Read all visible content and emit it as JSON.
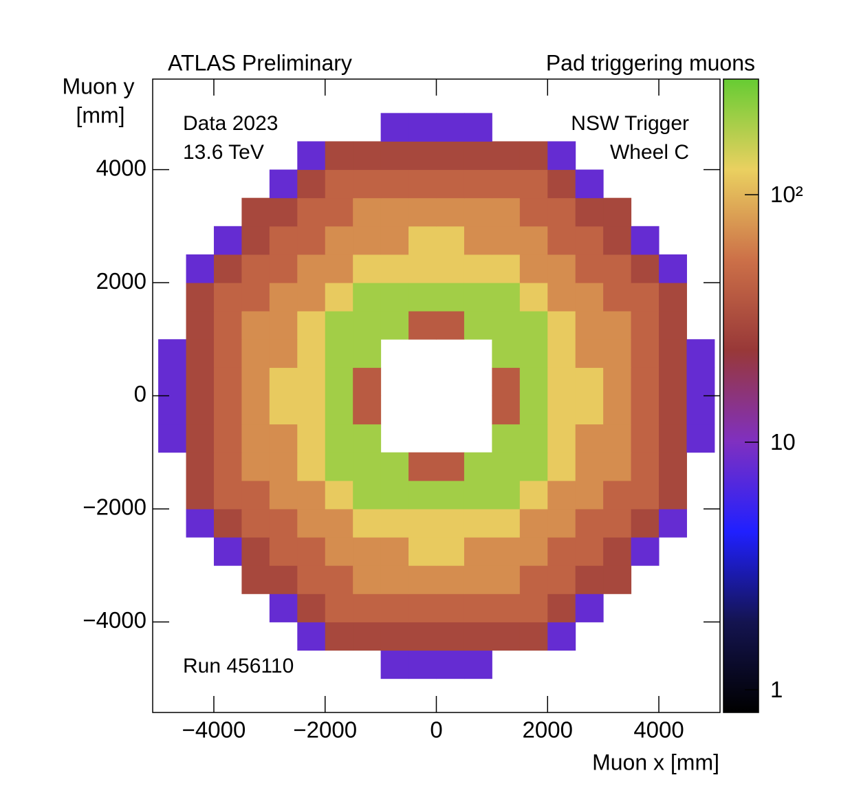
{
  "chart_data": {
    "type": "heatmap",
    "title": "Pad triggering muons",
    "experiment": "ATLAS Preliminary",
    "annotations_left": [
      "Data 2023",
      "13.6 TeV"
    ],
    "annotations_right": [
      "NSW Trigger",
      "Wheel C"
    ],
    "run_label": "Run 456110",
    "xlabel": "Muon x [mm]",
    "ylabel_lines": [
      "Muon y",
      "[mm]"
    ],
    "xlim": [
      -5100,
      5100
    ],
    "ylim": [
      -5600,
      5600
    ],
    "xticks": [
      {
        "value": -4000,
        "label": "−4000"
      },
      {
        "value": -2000,
        "label": "−2000"
      },
      0,
      2000,
      4000
    ],
    "yticks": [
      {
        "value": -4000,
        "label": "−4000"
      },
      {
        "value": -2000,
        "label": "−2000"
      },
      0,
      2000,
      4000
    ],
    "xbins": [
      -5000,
      -4500,
      -4000,
      -3500,
      -3000,
      -2500,
      -2000,
      -1500,
      -1000,
      -500,
      0,
      500,
      1000,
      1500,
      2000,
      2500,
      3000,
      3500,
      4000,
      4500,
      5000
    ],
    "ybins": [
      -5000,
      -4500,
      -4000,
      -3500,
      -3000,
      -2500,
      -2000,
      -1500,
      -1000,
      -500,
      0,
      500,
      1000,
      1500,
      2000,
      2500,
      3000,
      3500,
      4000,
      4500,
      5000
    ],
    "z": [
      [
        null,
        null,
        null,
        null,
        null,
        null,
        null,
        null,
        8,
        8,
        8,
        8,
        null,
        null,
        null,
        null,
        null,
        null,
        null,
        null
      ],
      [
        null,
        null,
        null,
        null,
        null,
        8,
        30,
        30,
        30,
        30,
        30,
        30,
        30,
        30,
        8,
        null,
        null,
        null,
        null,
        null
      ],
      [
        null,
        null,
        null,
        null,
        8,
        30,
        45,
        45,
        45,
        45,
        45,
        45,
        45,
        45,
        30,
        8,
        null,
        null,
        null,
        null
      ],
      [
        null,
        null,
        null,
        30,
        30,
        45,
        45,
        70,
        70,
        70,
        70,
        70,
        70,
        45,
        45,
        30,
        30,
        null,
        null,
        null
      ],
      [
        null,
        null,
        8,
        30,
        45,
        45,
        70,
        70,
        70,
        120,
        120,
        70,
        70,
        70,
        45,
        45,
        30,
        8,
        null,
        null
      ],
      [
        null,
        8,
        30,
        45,
        45,
        70,
        70,
        120,
        120,
        120,
        120,
        120,
        120,
        70,
        70,
        45,
        45,
        30,
        8,
        null
      ],
      [
        null,
        30,
        45,
        45,
        70,
        70,
        120,
        200,
        200,
        200,
        200,
        200,
        200,
        120,
        70,
        70,
        45,
        45,
        30,
        null
      ],
      [
        null,
        30,
        45,
        70,
        70,
        120,
        200,
        200,
        200,
        40,
        40,
        200,
        200,
        200,
        120,
        70,
        70,
        45,
        30,
        null
      ],
      [
        8,
        30,
        45,
        70,
        70,
        120,
        200,
        200,
        null,
        null,
        null,
        null,
        200,
        200,
        120,
        70,
        70,
        45,
        30,
        8
      ],
      [
        8,
        30,
        45,
        70,
        120,
        120,
        200,
        40,
        null,
        null,
        null,
        null,
        40,
        200,
        120,
        120,
        70,
        45,
        30,
        8
      ],
      [
        8,
        30,
        45,
        70,
        120,
        120,
        200,
        40,
        null,
        null,
        null,
        null,
        40,
        200,
        120,
        120,
        70,
        45,
        30,
        8
      ],
      [
        8,
        30,
        45,
        70,
        70,
        120,
        200,
        200,
        null,
        null,
        null,
        null,
        200,
        200,
        120,
        70,
        70,
        45,
        30,
        8
      ],
      [
        null,
        30,
        45,
        70,
        70,
        120,
        200,
        200,
        200,
        40,
        40,
        200,
        200,
        200,
        120,
        70,
        70,
        45,
        30,
        null
      ],
      [
        null,
        30,
        45,
        45,
        70,
        70,
        120,
        200,
        200,
        200,
        200,
        200,
        200,
        120,
        70,
        70,
        45,
        45,
        30,
        null
      ],
      [
        null,
        8,
        30,
        45,
        45,
        70,
        70,
        120,
        120,
        120,
        120,
        120,
        120,
        70,
        70,
        45,
        45,
        30,
        8,
        null
      ],
      [
        null,
        null,
        8,
        30,
        45,
        45,
        70,
        70,
        70,
        120,
        120,
        70,
        70,
        70,
        45,
        45,
        30,
        8,
        null,
        null
      ],
      [
        null,
        null,
        null,
        30,
        30,
        45,
        45,
        70,
        70,
        70,
        70,
        70,
        70,
        45,
        45,
        30,
        30,
        null,
        null,
        null
      ],
      [
        null,
        null,
        null,
        null,
        8,
        30,
        45,
        45,
        45,
        45,
        45,
        45,
        45,
        45,
        30,
        8,
        null,
        null,
        null,
        null
      ],
      [
        null,
        null,
        null,
        null,
        null,
        8,
        30,
        30,
        30,
        30,
        30,
        30,
        30,
        30,
        8,
        null,
        null,
        null,
        null,
        null
      ],
      [
        null,
        null,
        null,
        null,
        null,
        null,
        null,
        null,
        8,
        8,
        8,
        8,
        null,
        null,
        null,
        null,
        null,
        null,
        null,
        null
      ]
    ],
    "zlim": [
      0.81,
      293
    ],
    "zlog": true,
    "zticks": [
      1,
      10,
      {
        "value": 100,
        "label": "10²"
      }
    ],
    "colormap": [
      "#000000",
      "#141450",
      "#2020ff",
      "#8030c0",
      "#983838",
      "#cc7048",
      "#ead060",
      "#66cc33"
    ]
  }
}
